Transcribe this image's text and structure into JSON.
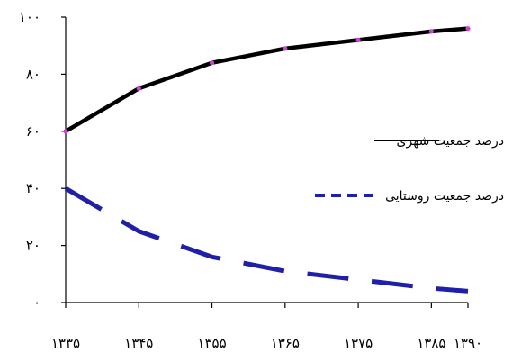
{
  "chart_data": {
    "type": "line",
    "title": "",
    "xlabel": "",
    "ylabel": "",
    "x": [
      1335,
      1345,
      1355,
      1365,
      1375,
      1385,
      1390
    ],
    "x_tick_labels": [
      "۱۳۳۵",
      "۱۳۴۵",
      "۱۳۵۵",
      "۱۳۶۵",
      "۱۳۷۵",
      "۱۳۸۵",
      "۱۳۹۰"
    ],
    "y_tick_values": [
      0,
      20,
      40,
      60,
      80,
      100
    ],
    "y_tick_labels": [
      "۰",
      "۲۰",
      "۴۰",
      "۶۰",
      "۸۰",
      "۱۰۰"
    ],
    "xlim": [
      1335,
      1390
    ],
    "ylim": [
      0,
      100
    ],
    "grid": false,
    "legend_position": "right",
    "series": [
      {
        "name": "درصد جمعیت شهری",
        "style": "solid",
        "color": "#000000",
        "marker_color": "#cc44cc",
        "values": [
          60,
          75,
          84,
          89,
          92,
          95,
          96
        ]
      },
      {
        "name": "درصد جمعیت روستایی",
        "style": "dashed",
        "color": "#1f1fa8",
        "values": [
          40,
          25,
          16,
          11,
          8,
          5,
          4
        ]
      }
    ]
  }
}
